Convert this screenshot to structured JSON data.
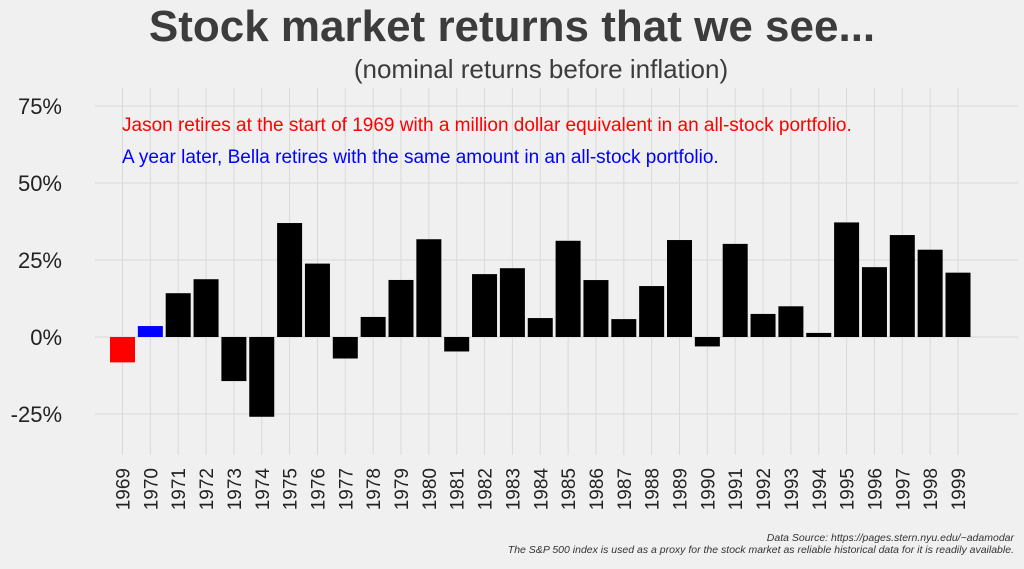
{
  "title": "Stock market returns that we see...",
  "subtitle": "(nominal returns before inflation)",
  "annotations": {
    "jason": "Jason retires at the start of 1969 with a million dollar equivalent in an all-stock portfolio.",
    "bella": "A year later, Bella retires with the same amount in an all-stock portfolio."
  },
  "source": {
    "line1": "Data Source: https://pages.stern.nyu.edu/~adamodar",
    "line2": "The S&P 500 index is used as a proxy for the stock market as reliable historical data for it is readily available."
  },
  "colors": {
    "background": "#f0f0f0",
    "grid": "#d9d9d9",
    "bar_default": "#000000",
    "bar_jason": "#ff0000",
    "bar_bella": "#0000ff",
    "jason_text": "#ff0000",
    "bella_text": "#0000ff"
  },
  "chart_data": {
    "type": "bar",
    "categories": [
      "1969",
      "1970",
      "1971",
      "1972",
      "1973",
      "1974",
      "1975",
      "1976",
      "1977",
      "1978",
      "1979",
      "1980",
      "1981",
      "1982",
      "1983",
      "1984",
      "1985",
      "1986",
      "1987",
      "1988",
      "1989",
      "1990",
      "1991",
      "1992",
      "1993",
      "1994",
      "1995",
      "1996",
      "1997",
      "1998",
      "1999"
    ],
    "values": [
      -8.24,
      3.56,
      14.22,
      18.76,
      -14.31,
      -25.9,
      37.0,
      23.83,
      -6.98,
      6.51,
      18.52,
      31.74,
      -4.7,
      20.42,
      22.34,
      6.15,
      31.24,
      18.49,
      5.81,
      16.54,
      31.48,
      -3.06,
      30.23,
      7.49,
      9.97,
      1.33,
      37.2,
      22.68,
      33.1,
      28.34,
      20.89
    ],
    "highlight": {
      "1969": "jason",
      "1970": "bella"
    },
    "ylim": [
      -42,
      82
    ],
    "yticks": [
      -25,
      0,
      25,
      50,
      75
    ],
    "ytick_labels": [
      "-25%",
      "0%",
      "25%",
      "50%",
      "75%"
    ],
    "grid": true,
    "xlabel": "",
    "ylabel": ""
  }
}
